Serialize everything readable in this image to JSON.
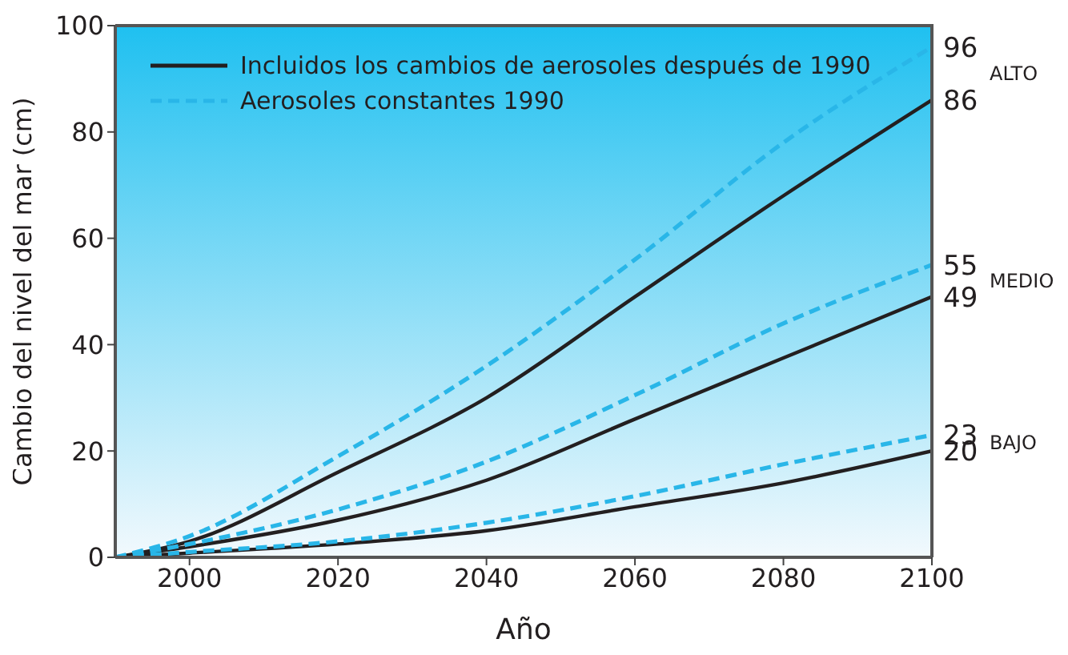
{
  "chart_data": {
    "type": "line",
    "xlabel": "Año",
    "ylabel": "Cambio del nivel del mar (cm)",
    "x": [
      1990,
      2000,
      2020,
      2040,
      2060,
      2080,
      2100
    ],
    "xlim": [
      1990,
      2100
    ],
    "xticks": [
      2000,
      2020,
      2040,
      2060,
      2080,
      2100
    ],
    "ylim": [
      0,
      100
    ],
    "yticks": [
      0,
      20,
      40,
      60,
      80,
      100
    ],
    "legend": "top left",
    "marker": "none",
    "series": [
      {
        "name": "Incluidos los cambios de aerosoles después de 1990",
        "color": "#231f20",
        "line_style": "solid",
        "values": [
          0,
          3,
          16,
          30,
          49,
          68,
          86
        ],
        "value_labels": [
          null,
          null,
          null,
          null,
          null,
          null,
          "86"
        ]
      },
      {
        "name": "Aerosoles constantes 1990",
        "color": "#29b6e8",
        "line_style": "dashed",
        "values": [
          0,
          4,
          19,
          36,
          56,
          78,
          96
        ],
        "value_labels": [
          null,
          null,
          null,
          null,
          null,
          null,
          "96"
        ]
      },
      {
        "color": "#231f20",
        "line_style": "solid",
        "values": [
          0,
          2,
          7,
          14.5,
          26,
          37.5,
          49
        ],
        "value_labels": [
          null,
          null,
          null,
          null,
          null,
          null,
          "49"
        ]
      },
      {
        "color": "#29b6e8",
        "line_style": "dashed",
        "values": [
          0,
          2.5,
          9,
          18,
          30.5,
          44,
          55
        ],
        "value_labels": [
          null,
          null,
          null,
          null,
          null,
          null,
          "55"
        ]
      },
      {
        "color": "#231f20",
        "line_style": "solid",
        "values": [
          0,
          0.8,
          2.5,
          5,
          9.5,
          14,
          20
        ],
        "value_labels": [
          null,
          null,
          null,
          null,
          null,
          null,
          "20"
        ]
      },
      {
        "color": "#29b6e8",
        "line_style": "dashed",
        "values": [
          0,
          1,
          3,
          6.5,
          11.5,
          17.5,
          23
        ],
        "value_labels": [
          null,
          null,
          null,
          null,
          null,
          null,
          "23"
        ]
      }
    ],
    "annotations": [
      "ALTO",
      "MEDIO",
      "BAJO"
    ]
  }
}
